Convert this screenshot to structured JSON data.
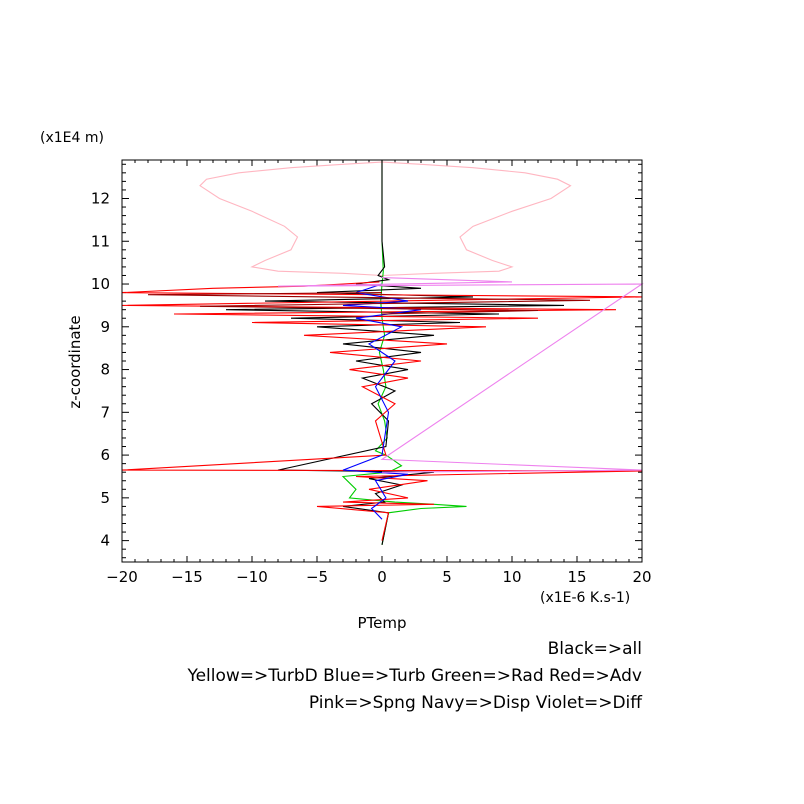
{
  "chart_data": {
    "type": "line",
    "y_unit_label": "(x1E4 m)",
    "x_unit_label": "(x1E-6 K.s-1)",
    "xlabel": "PTemp",
    "ylabel": "z-coordinate",
    "xlim": [
      -20,
      20
    ],
    "ylim": [
      3.5,
      12.9
    ],
    "x_ticks": [
      "−20",
      "−15",
      "−10",
      "−5",
      "0",
      "5",
      "10",
      "15",
      "20"
    ],
    "x_tick_values": [
      -20,
      -15,
      -10,
      -5,
      0,
      5,
      10,
      15,
      20
    ],
    "y_ticks": [
      "4",
      "5",
      "6",
      "7",
      "8",
      "9",
      "10",
      "11",
      "12"
    ],
    "y_tick_values": [
      4,
      5,
      6,
      7,
      8,
      9,
      10,
      11,
      12
    ],
    "legend_lines": [
      "Black=>all",
      "Yellow=>TurbD Blue=>Turb Green=>Rad Red=>Adv",
      "Pink=>Spng Navy=>Disp Violet=>Diff"
    ],
    "colors": {
      "all": "#000000",
      "TurbD": "#ffff00",
      "Turb": "#0000ff",
      "Rad": "#00cc00",
      "Adv": "#ff0000",
      "Spng": "#ffb6c1",
      "Disp": "#000080",
      "Diff": "#ee82ee",
      "dark_red": "#990000"
    },
    "series": [
      {
        "key": "Spng",
        "x": [
          0,
          -3,
          -7,
          -11,
          -13.5,
          -14,
          -12.5,
          -10,
          -7.5,
          -6.5,
          -7,
          -9,
          -10,
          -8,
          -3,
          0
        ],
        "y": [
          12.85,
          12.8,
          12.72,
          12.6,
          12.45,
          12.3,
          12.0,
          11.7,
          11.35,
          11.1,
          10.8,
          10.55,
          10.4,
          10.3,
          10.25,
          10.2
        ]
      },
      {
        "key": "Spng",
        "x": [
          0,
          3,
          7,
          11,
          13.5,
          14.5,
          13,
          10,
          7,
          6,
          6.5,
          8.5,
          10,
          9,
          4,
          0
        ],
        "y": [
          12.85,
          12.8,
          12.72,
          12.6,
          12.45,
          12.3,
          12.0,
          11.7,
          11.35,
          11.1,
          10.8,
          10.55,
          10.4,
          10.3,
          10.25,
          10.2
        ]
      },
      {
        "key": "Rad",
        "x": [
          0,
          0,
          0,
          0.1,
          0,
          -0.1,
          0,
          0.2,
          -0.2,
          0.1,
          0.3,
          -0.3,
          0.2,
          0.4,
          -0.5,
          0.3,
          0.8,
          1.5,
          0.5,
          -3,
          -2,
          -2.5,
          1,
          4,
          6.5,
          3,
          0.5,
          0
        ],
        "y": [
          12.9,
          12.0,
          11.0,
          10.3,
          10.0,
          9.6,
          9.2,
          8.8,
          8.4,
          8.0,
          7.6,
          7.2,
          6.8,
          6.4,
          6.1,
          6.0,
          5.9,
          5.75,
          5.6,
          5.5,
          5.2,
          5.0,
          4.9,
          4.85,
          4.8,
          4.75,
          4.65,
          3.9
        ]
      },
      {
        "key": "all",
        "x": [
          0,
          0,
          0.2,
          -0.3,
          0.5,
          -2,
          3,
          -5,
          7,
          -9,
          14,
          -12,
          9,
          -7,
          6,
          -5,
          4,
          -3,
          3,
          -2,
          2,
          -1.5,
          1,
          -0.8,
          0.5,
          0.3,
          -8,
          4,
          -1,
          1.5,
          -0.5,
          0.2,
          -3,
          0.5,
          0
        ],
        "y": [
          12.9,
          11.0,
          10.4,
          10.2,
          10.1,
          10.0,
          9.9,
          9.8,
          9.7,
          9.6,
          9.5,
          9.4,
          9.3,
          9.2,
          9.1,
          9.0,
          8.8,
          8.6,
          8.4,
          8.2,
          8.0,
          7.8,
          7.5,
          7.2,
          6.8,
          6.2,
          5.65,
          5.6,
          5.45,
          5.3,
          5.1,
          4.9,
          4.8,
          4.65,
          3.9
        ]
      },
      {
        "key": "Adv",
        "x": [
          -0.2,
          -3,
          -6,
          -13,
          -20,
          20,
          -20,
          18,
          -16,
          12,
          -10,
          8,
          -6,
          5,
          -4,
          3,
          -2.5,
          2,
          -1.5,
          1,
          -0.5,
          0.3,
          -20,
          20,
          -2,
          3.5,
          -1,
          2,
          -3,
          4,
          -5,
          0.5,
          0
        ],
        "y": [
          10.05,
          10.0,
          9.95,
          9.9,
          9.8,
          9.7,
          9.5,
          9.4,
          9.3,
          9.2,
          9.1,
          9.0,
          8.8,
          8.6,
          8.4,
          8.2,
          8.0,
          7.8,
          7.6,
          7.2,
          6.8,
          6.0,
          5.65,
          5.63,
          5.5,
          5.4,
          5.2,
          5.0,
          4.9,
          4.85,
          4.8,
          4.65,
          4.0
        ]
      },
      {
        "key": "Turb",
        "x": [
          0,
          -2,
          2,
          -3,
          3,
          -2,
          1.5,
          -1,
          1,
          -0.5,
          0.5,
          0,
          -3,
          2,
          -0.5,
          0.3,
          -0.8,
          0
        ],
        "y": [
          10.0,
          9.8,
          9.6,
          9.5,
          9.4,
          9.2,
          9.0,
          8.6,
          8.2,
          7.6,
          7.0,
          6.0,
          5.65,
          5.55,
          5.4,
          5.0,
          4.75,
          4.5
        ]
      },
      {
        "key": "Diff",
        "x": [
          0,
          10,
          -8,
          20,
          0,
          20,
          0
        ],
        "y": [
          10.15,
          10.05,
          9.95,
          10.0,
          5.9,
          5.65,
          5.6
        ]
      },
      {
        "key": "dark_red",
        "x": [
          0,
          -18,
          16,
          -14,
          12,
          0
        ],
        "y": [
          9.8,
          9.75,
          9.62,
          9.48,
          9.38,
          9.3
        ]
      }
    ]
  }
}
